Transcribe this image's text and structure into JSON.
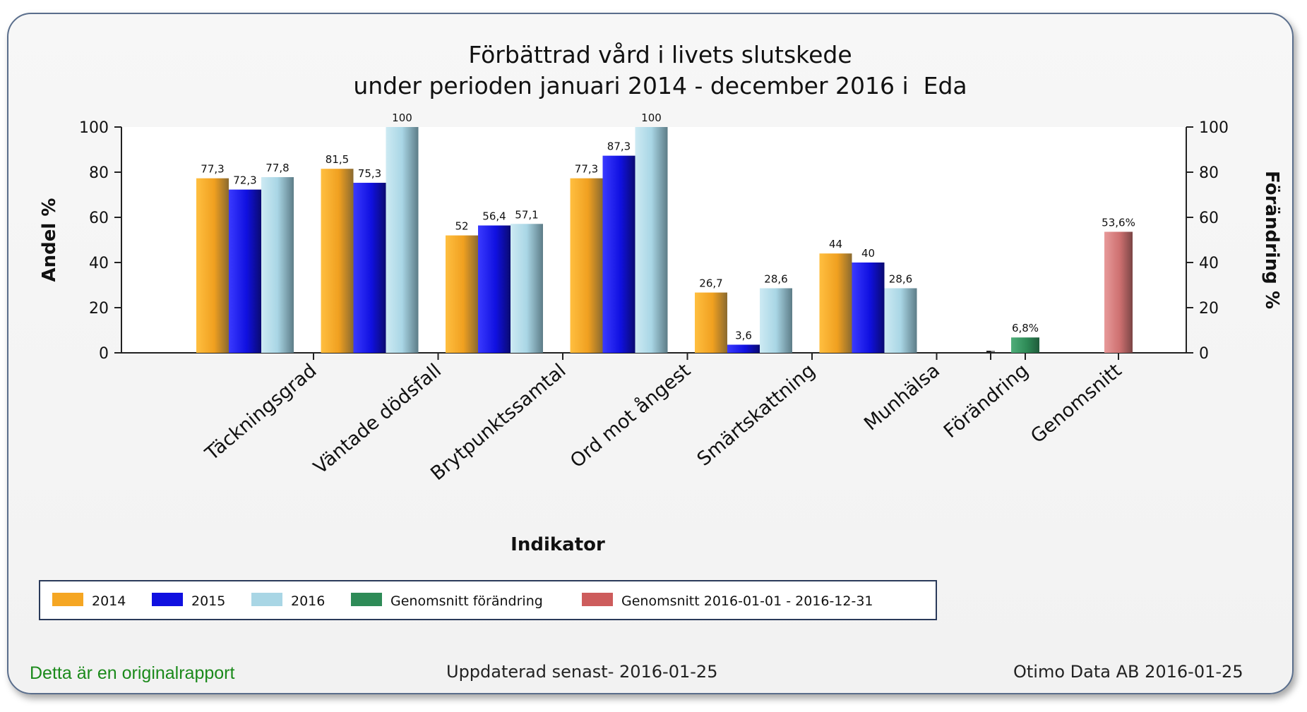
{
  "chart_data": {
    "type": "bar",
    "title": "Förbättrad vård i livets slutskede",
    "subtitle": "under perioden januari 2014 - december 2016 i  Eda",
    "xlabel": "Indikator",
    "ylabel": "Andel %",
    "ylabel_right": "Förändring %",
    "ylim": [
      0,
      100
    ],
    "yticks": [
      "0",
      "20",
      "40",
      "60",
      "80",
      "100"
    ],
    "categories": [
      "Täckningsgrad",
      "Väntade dödsfall",
      "Brytpunktssamtal",
      "Ord mot ångest",
      "Smärtskattning",
      "Munhälsa"
    ],
    "series": [
      {
        "name": "2014",
        "color": "#f5a623",
        "values": [
          77.3,
          81.5,
          52,
          77.3,
          26.7,
          44
        ],
        "labels": [
          "77,3",
          "81,5",
          "52",
          "77,3",
          "26,7",
          "44"
        ]
      },
      {
        "name": "2015",
        "color": "#1010e0",
        "values": [
          72.3,
          75.3,
          56.4,
          87.3,
          3.6,
          40
        ],
        "labels": [
          "72,3",
          "75,3",
          "56,4",
          "87,3",
          "3,6",
          "40"
        ]
      },
      {
        "name": "2016",
        "color": "#a9d6e5",
        "values": [
          77.8,
          100,
          57.1,
          100,
          28.6,
          28.6
        ],
        "labels": [
          "77,8",
          "100",
          "57,1",
          "100",
          "28,6",
          "28,6"
        ]
      }
    ],
    "extra_categories": [
      "Förändring",
      "Genomsnitt"
    ],
    "extra_series": [
      {
        "name": "Genomsnitt förändring",
        "color": "#2e8b57",
        "category": "Förändring",
        "value": 6.8,
        "label": "6,8%"
      },
      {
        "name": "Genomsnitt 2016-01-01 - 2016-12-31",
        "color": "#cd5c5c",
        "category": "Genomsnitt",
        "value": 53.6,
        "label": "53,6%"
      }
    ],
    "legend_position": "bottom-left",
    "grid": false
  },
  "footer": {
    "original": "Detta är en originalrapport",
    "updated": "Uppdaterad senast- 2016-01-25",
    "vendor": "Otimo Data AB 2016-01-25"
  }
}
